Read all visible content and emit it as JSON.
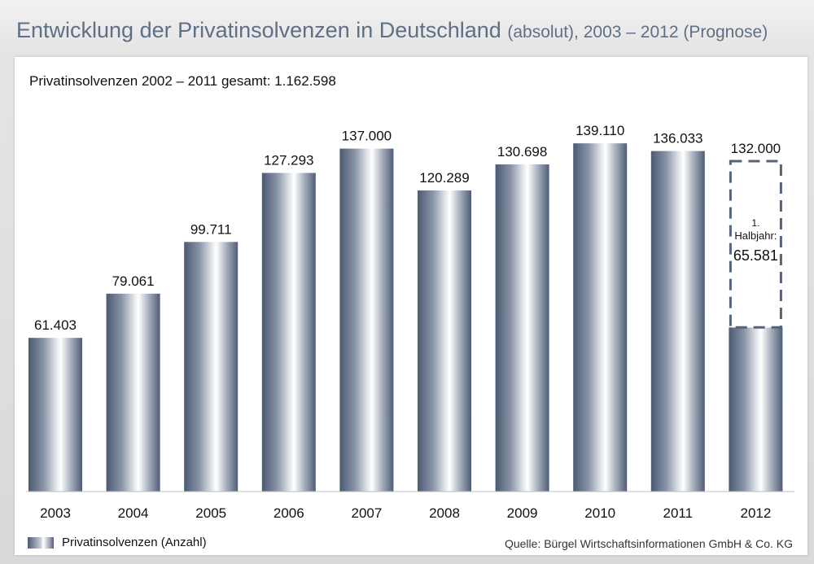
{
  "header": {
    "title_main": "Entwicklung der Privatinsolvenzen in Deutschland",
    "title_suffix": "(absolut), 2003 – 2012 (Prognose)"
  },
  "subtitle": "Privatinsolvenzen 2002 – 2011 gesamt: 1.162.598",
  "legend": {
    "label": "Privatinsolvenzen (Anzahl)"
  },
  "source": "Quelle: Bürgel Wirtschaftsinformationen GmbH & Co. KG",
  "colors": {
    "bar_dark": "#4b5a72",
    "bar_light": "#ffffff",
    "forecast_border": "#56647a"
  },
  "chart_data": {
    "type": "bar",
    "categories": [
      "2003",
      "2004",
      "2005",
      "2006",
      "2007",
      "2008",
      "2009",
      "2010",
      "2011",
      "2012"
    ],
    "values": [
      61403,
      79061,
      99711,
      127293,
      137000,
      120289,
      130698,
      139110,
      136033,
      132000
    ],
    "labels": [
      "61.403",
      "79.061",
      "99.711",
      "127.293",
      "137.000",
      "120.289",
      "130.698",
      "139.110",
      "136.033",
      "132.000"
    ],
    "forecast": {
      "category": "2012",
      "forecast_value": 132000,
      "actual_value": 65581,
      "note_line1": "1.",
      "note_line2": "Halbjahr:",
      "actual_label": "65.581"
    },
    "ylim": [
      0,
      145000
    ],
    "grid": false,
    "legend_position": "bottom-left"
  }
}
